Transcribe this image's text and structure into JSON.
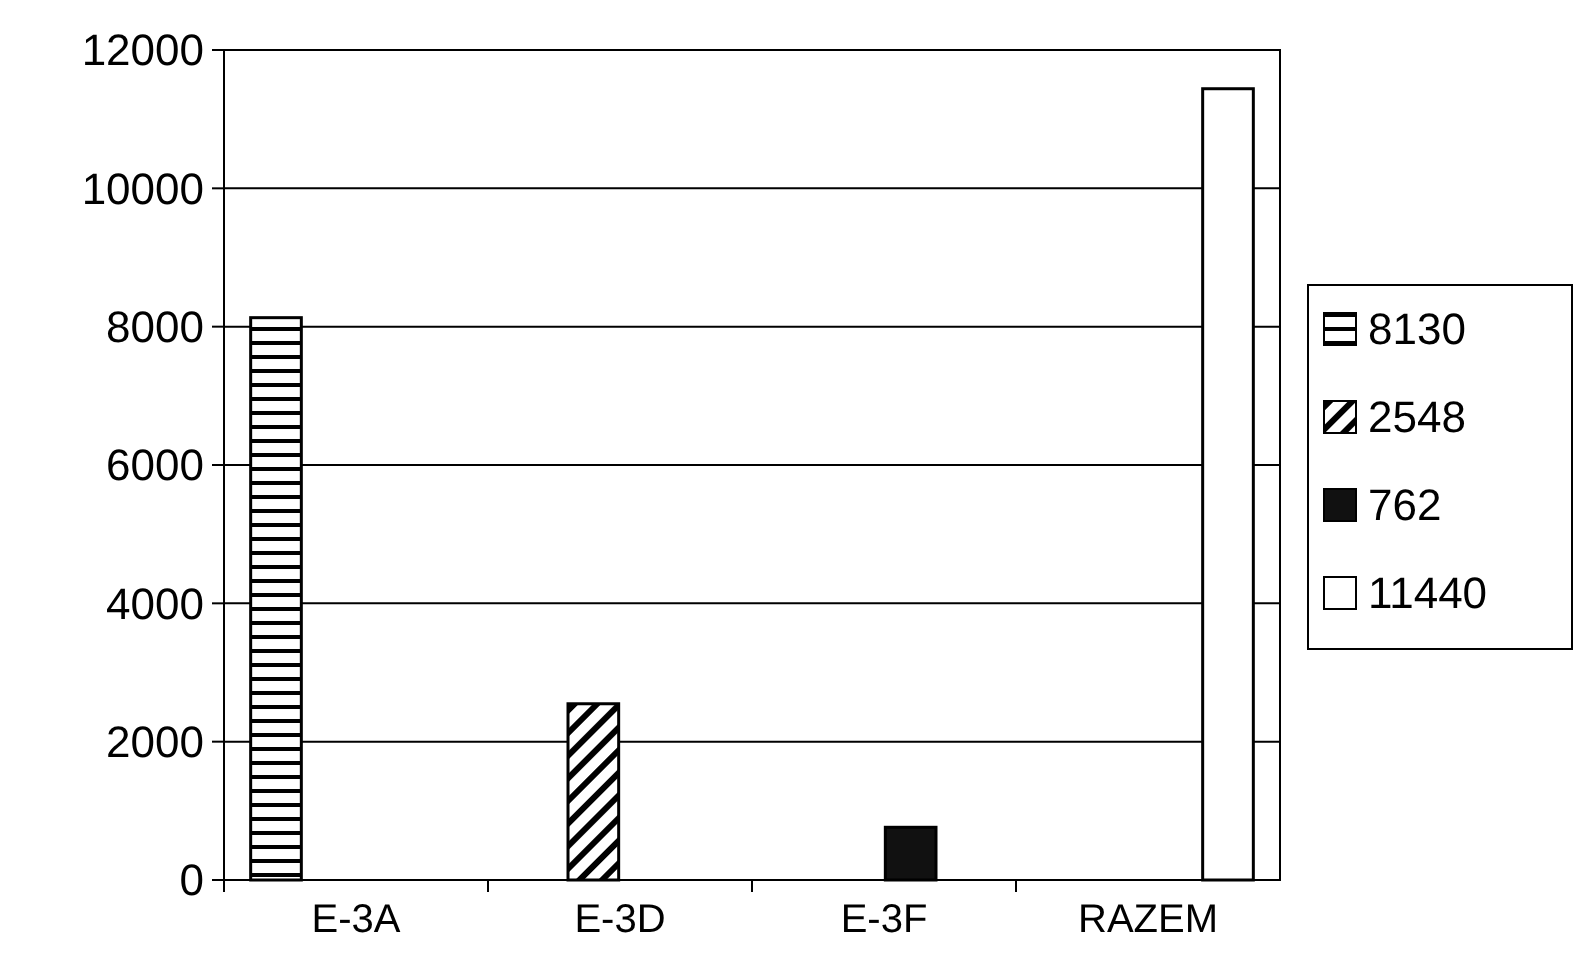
{
  "chart_data": {
    "type": "bar",
    "categories": [
      "E-3A",
      "E-3D",
      "E-3F",
      "RAZEM"
    ],
    "series": [
      {
        "name": "8130",
        "color": "#000000",
        "values": [
          8130,
          null,
          null,
          null
        ]
      },
      {
        "name": "2548",
        "color": "#000000",
        "values": [
          null,
          2548,
          null,
          null
        ]
      },
      {
        "name": "762",
        "color": "#111111",
        "values": [
          null,
          null,
          762,
          null
        ]
      },
      {
        "name": "11440",
        "color": "#ffffff",
        "values": [
          null,
          null,
          null,
          11440
        ]
      }
    ],
    "ylim": [
      0,
      12000
    ],
    "yticks": [
      0,
      2000,
      4000,
      6000,
      8000,
      10000,
      12000
    ],
    "grid": "y",
    "legend": "right"
  }
}
